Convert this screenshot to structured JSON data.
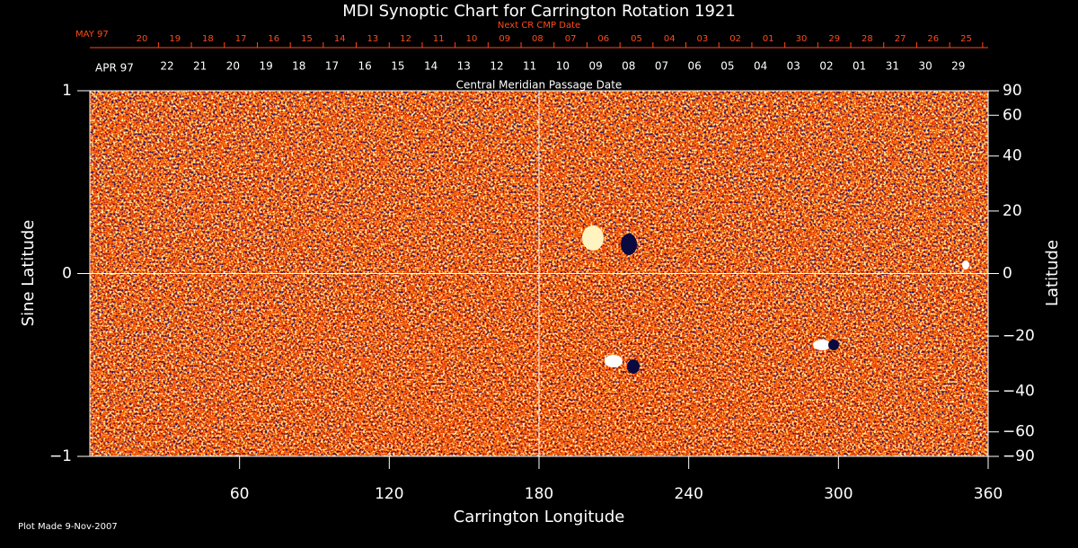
{
  "chart_data": {
    "type": "synoptic-map",
    "title": "MDI Synoptic Chart for Carrington Rotation 1921",
    "xlabel": "Carrington Longitude",
    "ylabel": "Sine Latitude",
    "y2label": "Latitude",
    "footnote": "Plot Made  9-Nov-2007",
    "xlim": [
      0,
      360
    ],
    "xticks": [
      60,
      120,
      180,
      240,
      300,
      360
    ],
    "ylim": [
      -1,
      1
    ],
    "yticks": [
      {
        "value": -1,
        "label": "−1"
      },
      0,
      1
    ],
    "y2lim": [
      -90,
      90
    ],
    "y2scale": "sine",
    "y2ticks": [
      {
        "value": -90,
        "label": "−90"
      },
      {
        "value": -60,
        "label": "−60"
      },
      {
        "value": -40,
        "label": "−40"
      },
      {
        "value": -20,
        "label": "−20"
      },
      0,
      20,
      40,
      60,
      90
    ],
    "grid": true,
    "next_cmp_axis": {
      "label": "Next CR CMP Date",
      "month": "MAY 97",
      "dates": [
        "20",
        "19",
        "18",
        "17",
        "16",
        "15",
        "14",
        "13",
        "12",
        "11",
        "10",
        "09",
        "08",
        "07",
        "06",
        "05",
        "04",
        "03",
        "02",
        "01",
        "30",
        "29",
        "28",
        "27",
        "26",
        "25"
      ]
    },
    "cmp_axis": {
      "label": "Central Meridian Passage Date",
      "month": "APR 97",
      "dates": [
        "22",
        "21",
        "20",
        "19",
        "18",
        "17",
        "16",
        "15",
        "14",
        "13",
        "12",
        "11",
        "10",
        "09",
        "08",
        "07",
        "06",
        "05",
        "04",
        "03",
        "02",
        "01",
        "31",
        "30",
        "29"
      ]
    }
  }
}
